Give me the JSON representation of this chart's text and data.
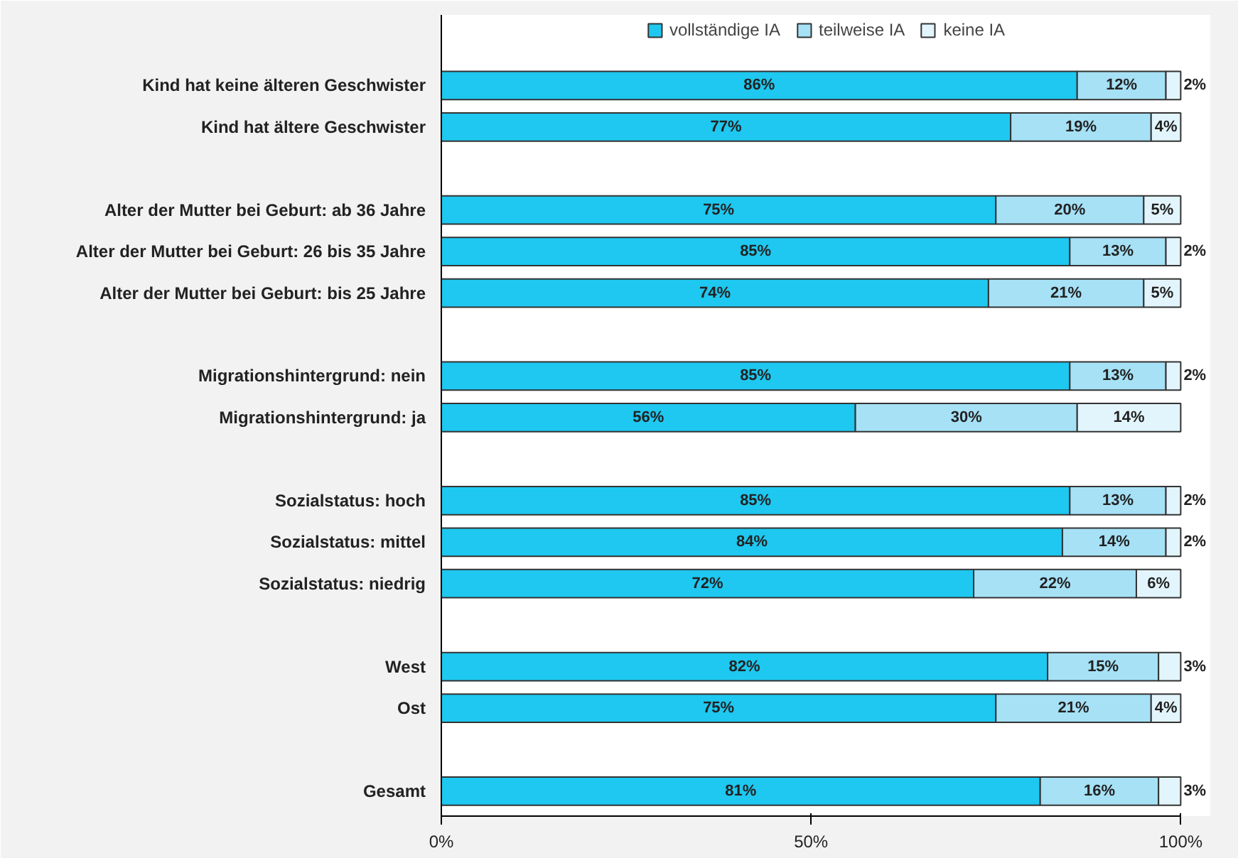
{
  "chart_data": {
    "type": "bar",
    "orientation": "horizontal",
    "stacked": true,
    "legend": "top",
    "grid": false,
    "categories": [
      "Kind hat keine älteren Geschwister",
      "Kind hat ältere Geschwister",
      null,
      "Alter der Mutter bei Geburt: ab 36 Jahre",
      "Alter der Mutter bei Geburt: 26 bis 35 Jahre",
      "Alter der Mutter bei Geburt: bis 25 Jahre",
      null,
      "Migrationshintergrund: nein",
      "Migrationshintergrund: ja",
      null,
      "Sozialstatus: hoch",
      "Sozialstatus: mittel",
      "Sozialstatus: niedrig",
      null,
      "West",
      "Ost",
      null,
      "Gesamt"
    ],
    "series": [
      {
        "name": "vollständige IA",
        "color": "#1ec8f0",
        "values": [
          86,
          77,
          null,
          75,
          85,
          74,
          null,
          85,
          56,
          null,
          85,
          84,
          72,
          null,
          82,
          75,
          null,
          81
        ],
        "value_labels": [
          "86%",
          "77%",
          null,
          "75%",
          "85%",
          "74%",
          null,
          "85%",
          "56%",
          null,
          "85%",
          "84%",
          "72%",
          null,
          "82%",
          "75%",
          null,
          "81%"
        ]
      },
      {
        "name": "teilweise IA",
        "color": "#a6e1f6",
        "values": [
          12,
          19,
          null,
          20,
          13,
          21,
          null,
          13,
          30,
          null,
          13,
          14,
          22,
          null,
          15,
          21,
          null,
          16
        ],
        "value_labels": [
          "12%",
          "19%",
          null,
          "20%",
          "13%",
          "21%",
          null,
          "13%",
          "30%",
          null,
          "13%",
          "14%",
          "22%",
          null,
          "15%",
          "21%",
          null,
          "16%"
        ]
      },
      {
        "name": "keine IA",
        "color": "#e2f5fc",
        "values": [
          2,
          4,
          null,
          5,
          2,
          5,
          null,
          2,
          14,
          null,
          2,
          2,
          6,
          null,
          3,
          4,
          null,
          3
        ],
        "value_labels": [
          "2%",
          "4%",
          null,
          "5%",
          "2%",
          "5%",
          null,
          "2%",
          "14%",
          null,
          "2%",
          "2%",
          "6%",
          null,
          "3%",
          "4%",
          null,
          "3%"
        ]
      }
    ],
    "xlim": [
      0,
      100
    ],
    "xticks": [
      {
        "value": 0,
        "label": "0%"
      },
      {
        "value": 50,
        "label": "50%"
      },
      {
        "value": 100,
        "label": "100%"
      }
    ]
  }
}
